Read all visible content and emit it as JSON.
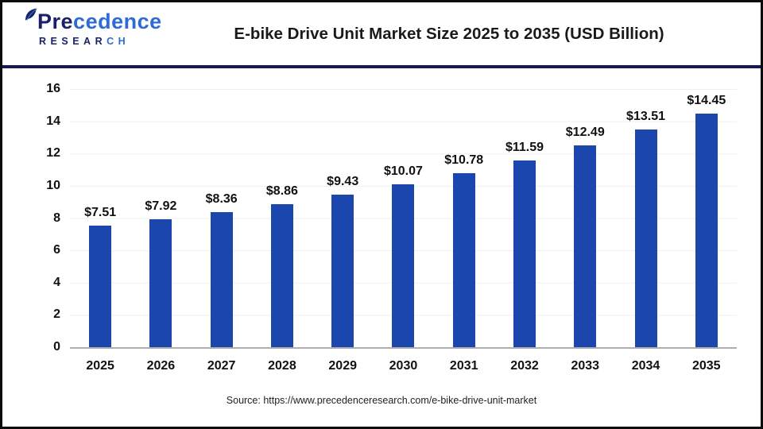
{
  "header": {
    "logo": {
      "name_part1": "Pre",
      "name_part2": "cedence",
      "sub_part1": "RESEAR",
      "sub_part2": "CH"
    },
    "title": "E-bike Drive Unit Market Size 2025 to 2035 (USD Billion)"
  },
  "chart_data": {
    "type": "bar",
    "title": "E-bike Drive Unit Market Size 2025 to 2035 (USD Billion)",
    "categories": [
      "2025",
      "2026",
      "2027",
      "2028",
      "2029",
      "2030",
      "2031",
      "2032",
      "2033",
      "2034",
      "2035"
    ],
    "values": [
      7.51,
      7.92,
      8.36,
      8.86,
      9.43,
      10.07,
      10.78,
      11.59,
      12.49,
      13.51,
      14.45
    ],
    "value_prefix": "$",
    "xlabel": "",
    "ylabel": "",
    "ylim": [
      0,
      16
    ],
    "yticks": [
      0,
      2,
      4,
      6,
      8,
      10,
      12,
      14,
      16
    ],
    "grid": true,
    "legend_position": "none",
    "bar_color": "#1b46ae"
  },
  "colors": {
    "bar_blue": "#1b46ae",
    "divider_navy": "#141a4f",
    "logo_navy": "#1b2166",
    "logo_blue": "#2e6bd6",
    "gridline": "#efefef",
    "axis_line": "#aeaeae",
    "title_text": "#1a1a1a"
  },
  "footer": {
    "source": "Source: https://www.precedenceresearch.com/e-bike-drive-unit-market"
  }
}
